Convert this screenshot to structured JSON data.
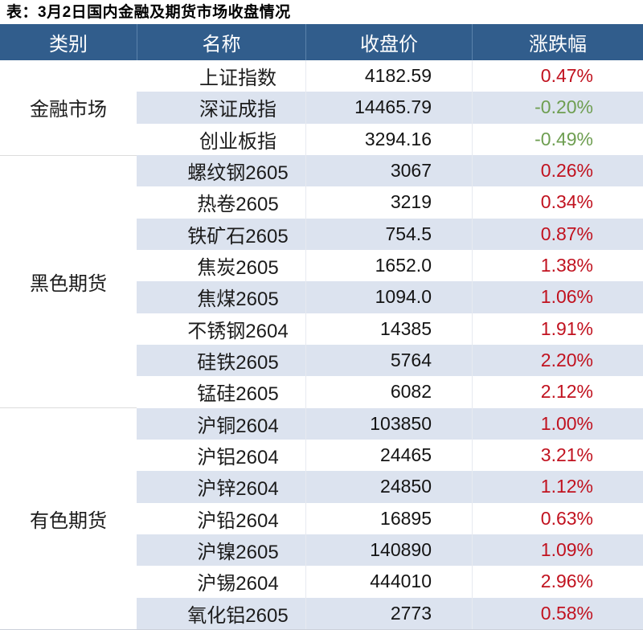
{
  "title": "表：3月2日国内金融及期货市场收盘情况",
  "colors": {
    "header_bg": "#315d8c",
    "header_text": "#ffffff",
    "stripe": "#dce3ef",
    "up_red": "#c1121f",
    "down_green": "#6e9e51"
  },
  "chart_data": {
    "type": "table",
    "title": "表：3月2日国内金融及期货市场收盘情况",
    "columns": [
      "类别",
      "名称",
      "收盘价",
      "涨跌幅"
    ],
    "groups": [
      {
        "category": "金融市场",
        "rows": [
          {
            "name": "上证指数",
            "close": "4182.59",
            "change": "0.47%"
          },
          {
            "name": "深证成指",
            "close": "14465.79",
            "change": "-0.20%"
          },
          {
            "name": "创业板指",
            "close": "3294.16",
            "change": "-0.49%"
          }
        ]
      },
      {
        "category": "黑色期货",
        "rows": [
          {
            "name": "螺纹钢2605",
            "close": "3067",
            "change": "0.26%"
          },
          {
            "name": "热卷2605",
            "close": "3219",
            "change": "0.34%"
          },
          {
            "name": "铁矿石2605",
            "close": "754.5",
            "change": "0.87%"
          },
          {
            "name": "焦炭2605",
            "close": "1652.0",
            "change": "1.38%"
          },
          {
            "name": "焦煤2605",
            "close": "1094.0",
            "change": "1.06%"
          },
          {
            "name": "不锈钢2604",
            "close": "14385",
            "change": "1.91%"
          },
          {
            "name": "硅铁2605",
            "close": "5764",
            "change": "2.20%"
          },
          {
            "name": "锰硅2605",
            "close": "6082",
            "change": "2.12%"
          }
        ]
      },
      {
        "category": "有色期货",
        "rows": [
          {
            "name": "沪铜2604",
            "close": "103850",
            "change": "1.00%"
          },
          {
            "name": "沪铝2604",
            "close": "24465",
            "change": "3.21%"
          },
          {
            "name": "沪锌2604",
            "close": "24850",
            "change": "1.12%"
          },
          {
            "name": "沪铅2604",
            "close": "16895",
            "change": "0.63%"
          },
          {
            "name": "沪镍2605",
            "close": "140890",
            "change": "1.09%"
          },
          {
            "name": "沪锡2604",
            "close": "444010",
            "change": "2.96%"
          },
          {
            "name": "氧化铝2605",
            "close": "2773",
            "change": "0.58%"
          }
        ]
      }
    ]
  }
}
